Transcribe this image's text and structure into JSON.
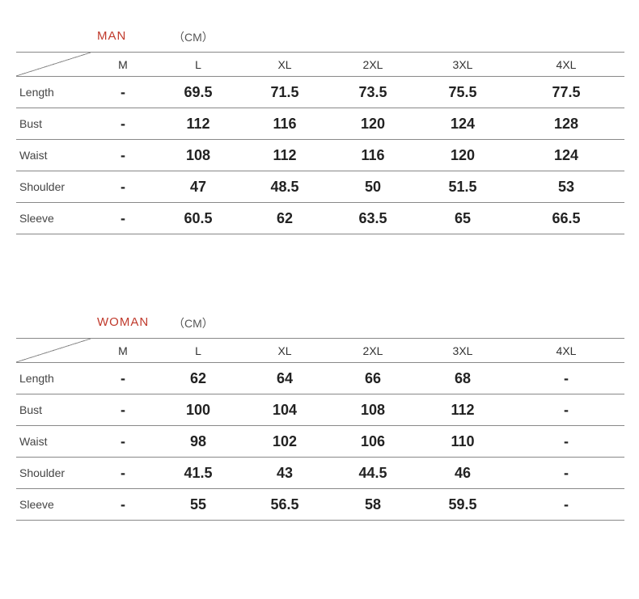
{
  "colors": {
    "group_label": "#c0392b",
    "border": "#888888",
    "text": "#222222",
    "rowlabel": "#444444",
    "background": "#ffffff"
  },
  "tables": [
    {
      "group": "MAN",
      "unit": "（CM）",
      "columns": [
        "M",
        "L",
        "XL",
        "2XL",
        "3XL",
        "4XL"
      ],
      "rows": [
        {
          "label": "Length",
          "values": [
            "-",
            "69.5",
            "71.5",
            "73.5",
            "75.5",
            "77.5"
          ]
        },
        {
          "label": "Bust",
          "values": [
            "-",
            "112",
            "116",
            "120",
            "124",
            "128"
          ]
        },
        {
          "label": "Waist",
          "values": [
            "-",
            "108",
            "112",
            "116",
            "120",
            "124"
          ]
        },
        {
          "label": "Shoulder",
          "values": [
            "-",
            "47",
            "48.5",
            "50",
            "51.5",
            "53"
          ]
        },
        {
          "label": "Sleeve",
          "values": [
            "-",
            "60.5",
            "62",
            "63.5",
            "65",
            "66.5"
          ]
        }
      ]
    },
    {
      "group": "WOMAN",
      "unit": "（CM）",
      "columns": [
        "M",
        "L",
        "XL",
        "2XL",
        "3XL",
        "4XL"
      ],
      "rows": [
        {
          "label": "Length",
          "values": [
            "-",
            "62",
            "64",
            "66",
            "68",
            "-"
          ]
        },
        {
          "label": "Bust",
          "values": [
            "-",
            "100",
            "104",
            "108",
            "112",
            "-"
          ]
        },
        {
          "label": "Waist",
          "values": [
            "-",
            "98",
            "102",
            "106",
            "110",
            "-"
          ]
        },
        {
          "label": "Shoulder",
          "values": [
            "-",
            "41.5",
            "43",
            "44.5",
            "46",
            "-"
          ]
        },
        {
          "label": "Sleeve",
          "values": [
            "-",
            "55",
            "56.5",
            "58",
            "59.5",
            "-"
          ]
        }
      ]
    }
  ]
}
